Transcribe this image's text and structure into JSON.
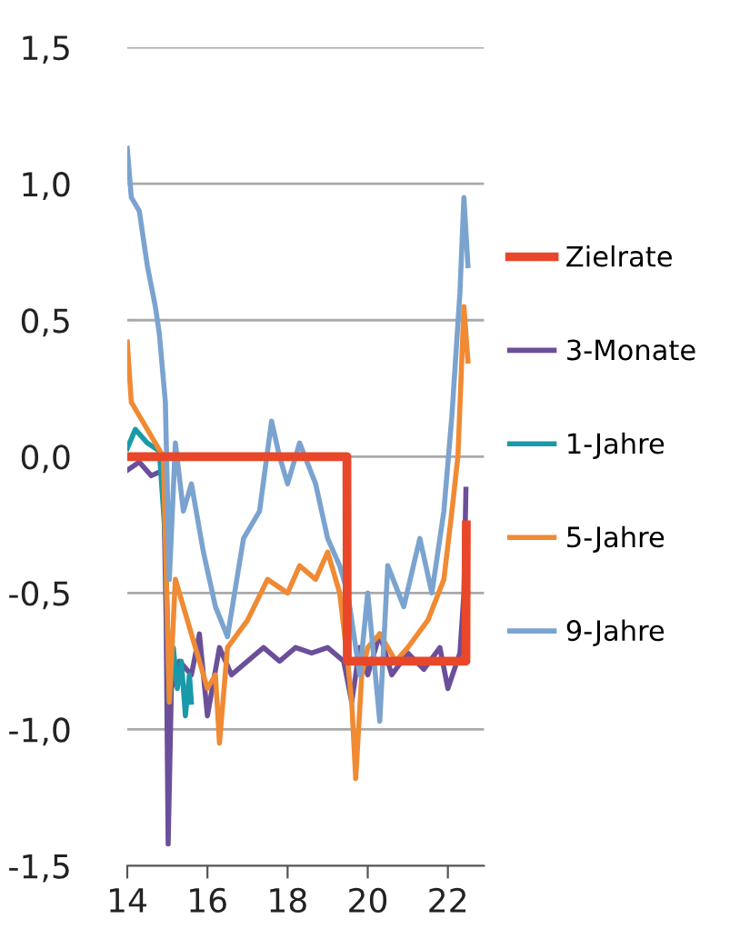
{
  "chart_data": {
    "type": "line",
    "ylim": [
      -1.5,
      1.5
    ],
    "xlim": [
      14,
      22.9
    ],
    "xticks": [
      14,
      16,
      18,
      20,
      22
    ],
    "yticks": [
      {
        "value": -1.5,
        "label": "-1,5"
      },
      {
        "value": -1.0,
        "label": "-1,0"
      },
      {
        "value": -0.5,
        "label": "-0,5"
      },
      {
        "value": 0.0,
        "label": "0,0"
      },
      {
        "value": 0.5,
        "label": "0,5"
      },
      {
        "value": 1.0,
        "label": "1,0"
      },
      {
        "value": 1.5,
        "label": "1,5"
      }
    ],
    "grid": "y",
    "legend": "right",
    "line_style": "solid",
    "marker": "none",
    "series": [
      {
        "name": "Zielrate",
        "color": "#e8472a",
        "x": [
          14.0,
          19.48,
          19.49,
          22.45,
          22.46
        ],
        "values": [
          0.0,
          0.0,
          -0.75,
          -0.75,
          -0.25
        ]
      },
      {
        "name": "3-Monate",
        "color": "#6b4f9a",
        "x": [
          14.0,
          14.3,
          14.6,
          14.9,
          14.97,
          15.02,
          15.1,
          15.3,
          15.6,
          15.8,
          16.0,
          16.3,
          16.6,
          17.0,
          17.4,
          17.8,
          18.2,
          18.6,
          19.0,
          19.4,
          19.6,
          19.8,
          20.0,
          20.3,
          20.6,
          21.0,
          21.4,
          21.8,
          22.0,
          22.3,
          22.4,
          22.45
        ],
        "values": [
          -0.05,
          -0.02,
          -0.07,
          -0.05,
          -0.6,
          -1.42,
          -0.85,
          -0.75,
          -0.8,
          -0.65,
          -0.95,
          -0.7,
          -0.8,
          -0.75,
          -0.7,
          -0.75,
          -0.7,
          -0.72,
          -0.7,
          -0.75,
          -0.9,
          -0.7,
          -0.8,
          -0.65,
          -0.8,
          -0.72,
          -0.78,
          -0.7,
          -0.85,
          -0.72,
          -0.5,
          -0.12
        ]
      },
      {
        "name": "1-Jahre",
        "color": "#1a9aa8",
        "x": [
          14.0,
          14.2,
          14.5,
          14.8,
          14.95,
          15.05,
          15.15,
          15.25,
          15.35,
          15.45,
          15.55,
          15.6
        ],
        "values": [
          0.03,
          0.1,
          0.05,
          0.02,
          -0.3,
          -0.9,
          -0.7,
          -0.85,
          -0.75,
          -0.95,
          -0.8,
          -0.9
        ]
      },
      {
        "name": "5-Jahre",
        "color": "#f08a33",
        "x": [
          14.0,
          14.1,
          14.3,
          14.5,
          14.7,
          14.9,
          15.05,
          15.2,
          15.5,
          15.8,
          16.0,
          16.2,
          16.3,
          16.5,
          17.0,
          17.5,
          18.0,
          18.3,
          18.7,
          19.0,
          19.3,
          19.5,
          19.6,
          19.7,
          19.85,
          20.0,
          20.3,
          20.7,
          21.0,
          21.5,
          21.9,
          22.1,
          22.25,
          22.4,
          22.5
        ],
        "values": [
          0.42,
          0.2,
          0.15,
          0.1,
          0.05,
          0.0,
          -0.9,
          -0.45,
          -0.6,
          -0.75,
          -0.85,
          -0.8,
          -1.05,
          -0.7,
          -0.6,
          -0.45,
          -0.5,
          -0.4,
          -0.45,
          -0.35,
          -0.5,
          -0.75,
          -0.9,
          -1.18,
          -0.8,
          -0.7,
          -0.65,
          -0.75,
          -0.7,
          -0.6,
          -0.45,
          -0.2,
          0.0,
          0.55,
          0.35
        ]
      },
      {
        "name": "9-Jahre",
        "color": "#7ba3cf",
        "x": [
          14.0,
          14.1,
          14.3,
          14.5,
          14.7,
          14.8,
          14.95,
          15.05,
          15.2,
          15.4,
          15.6,
          15.9,
          16.2,
          16.5,
          16.9,
          17.3,
          17.6,
          17.8,
          18.0,
          18.3,
          18.7,
          19.0,
          19.3,
          19.5,
          19.8,
          20.0,
          20.3,
          20.5,
          20.9,
          21.3,
          21.6,
          21.9,
          22.1,
          22.3,
          22.4,
          22.5
        ],
        "values": [
          1.13,
          0.95,
          0.9,
          0.7,
          0.55,
          0.45,
          0.2,
          -0.45,
          0.05,
          -0.2,
          -0.1,
          -0.35,
          -0.55,
          -0.66,
          -0.3,
          -0.2,
          0.13,
          0.0,
          -0.1,
          0.05,
          -0.1,
          -0.3,
          -0.4,
          -0.5,
          -0.8,
          -0.5,
          -0.97,
          -0.4,
          -0.55,
          -0.3,
          -0.5,
          -0.2,
          0.15,
          0.6,
          0.95,
          0.7
        ]
      }
    ]
  }
}
